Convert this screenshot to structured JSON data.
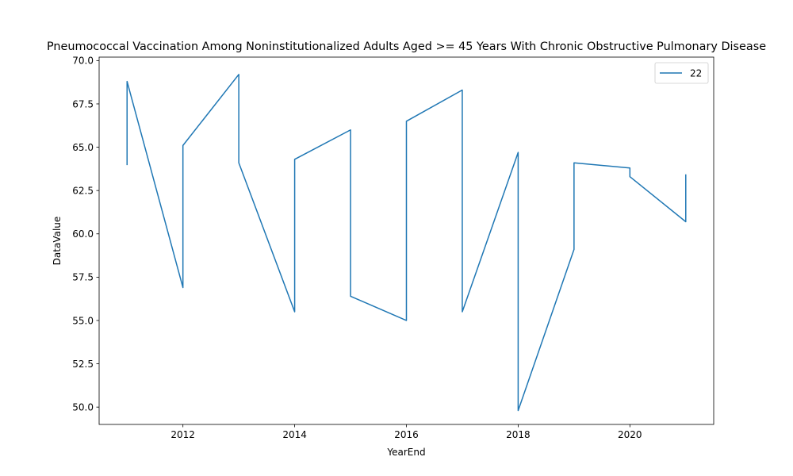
{
  "chart_data": {
    "type": "line",
    "title": "Pneumococcal Vaccination Among Noninstitutionalized Adults Aged >= 45 Years With Chronic Obstructive Pulmonary Disease",
    "xlabel": "YearEnd",
    "ylabel": "DataValue",
    "xlim": [
      2010.5,
      2021.5
    ],
    "ylim": [
      49.0,
      70.2
    ],
    "x_ticks": [
      2012,
      2014,
      2016,
      2018,
      2020
    ],
    "y_ticks": [
      50.0,
      52.5,
      55.0,
      57.5,
      60.0,
      62.5,
      65.0,
      67.5,
      70.0
    ],
    "legend_position": "top-right",
    "grid": false,
    "series": [
      {
        "name": "22",
        "color": "#1f77b4",
        "x": [
          2011,
          2011,
          2012,
          2012,
          2013,
          2013,
          2014,
          2014,
          2015,
          2015,
          2016,
          2016,
          2017,
          2017,
          2018,
          2018,
          2019,
          2019,
          2020,
          2020,
          2021,
          2021
        ],
        "y": [
          64.0,
          68.8,
          56.9,
          65.1,
          69.2,
          64.1,
          55.5,
          64.3,
          66.0,
          56.4,
          55.0,
          66.5,
          68.3,
          55.5,
          64.7,
          49.8,
          59.1,
          64.1,
          63.8,
          63.3,
          60.7,
          63.4
        ]
      }
    ]
  }
}
